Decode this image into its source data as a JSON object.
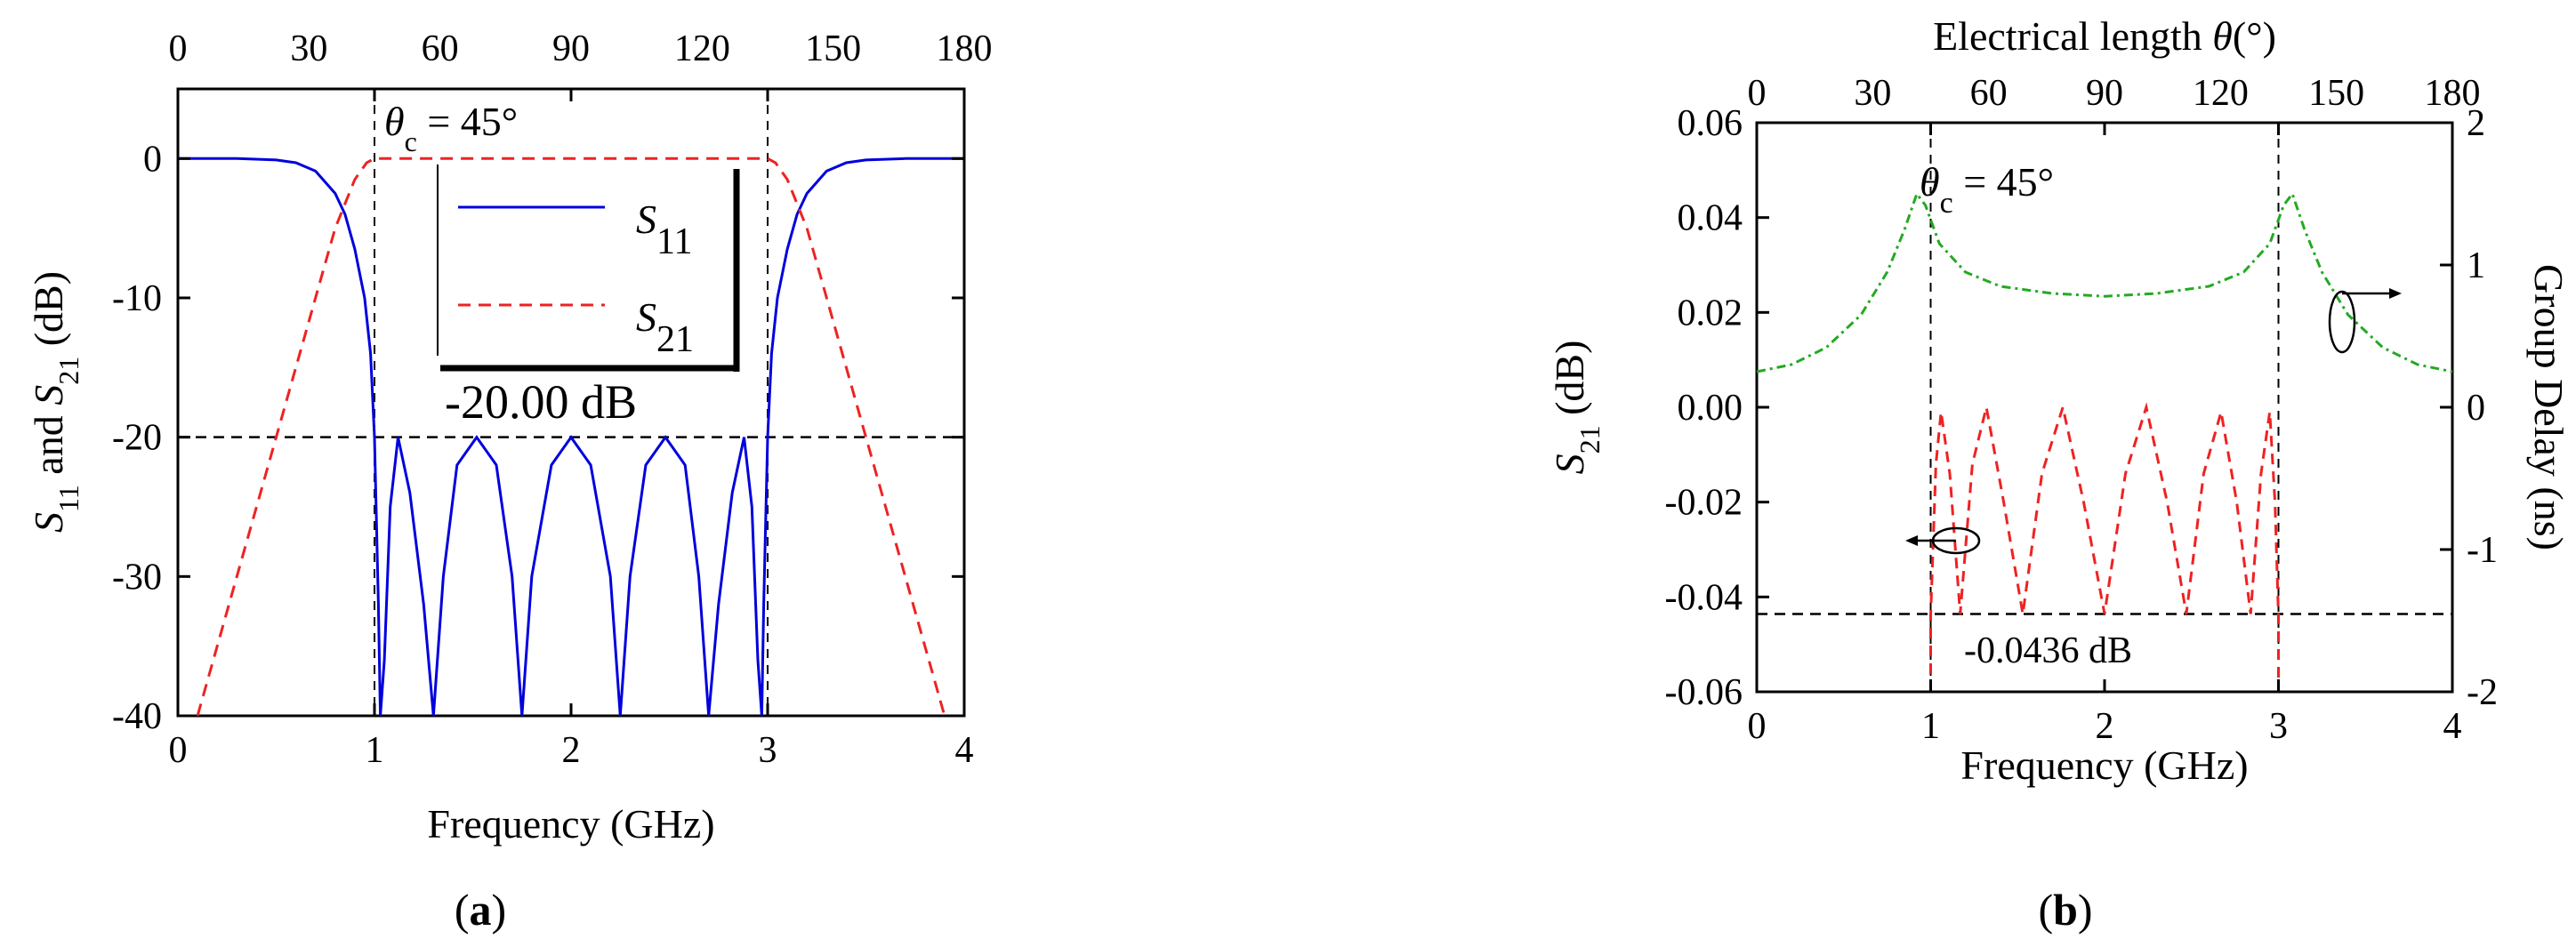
{
  "chart_data": [
    {
      "type": "line",
      "panel_label": "(a)",
      "panel_label_parts": [
        "(",
        "a",
        ")"
      ],
      "xlabel": "Frequency (GHz)",
      "ylabel_parts": {
        "s": "S",
        "sub1": "11",
        "and": " and ",
        "sub2": "21",
        "unit": " (dB)"
      },
      "xlim": [
        0,
        4
      ],
      "ylim": [
        -40,
        5
      ],
      "xticks": [
        "0",
        "1",
        "2",
        "3",
        "4"
      ],
      "yticks": [
        "0",
        "-10",
        "-20",
        "-30",
        "-40"
      ],
      "top_axis": {
        "ticks": [
          "0",
          "30",
          "60",
          "90",
          "120",
          "150",
          "180"
        ],
        "label": ""
      },
      "annotation_theta": {
        "theta": "θ",
        "sub": "c",
        "text": " = 45°"
      },
      "legend": {
        "entries": [
          {
            "sym": "S",
            "sub": "11",
            "color": "#0000dd",
            "dash": "solid"
          },
          {
            "sym": "S",
            "sub": "21",
            "color": "#ee2222",
            "dash": "dashed"
          }
        ],
        "note": "-20.00 dB"
      },
      "reference_lines": {
        "horizontal_db": -20,
        "vertical_ghz": [
          1,
          3
        ]
      },
      "series": [
        {
          "name": "S11",
          "color": "#0000dd",
          "points": [
            [
              0,
              0
            ],
            [
              0.3,
              0
            ],
            [
              0.5,
              -0.1
            ],
            [
              0.6,
              -0.3
            ],
            [
              0.7,
              -0.9
            ],
            [
              0.8,
              -2.5
            ],
            [
              0.85,
              -4
            ],
            [
              0.9,
              -6.5
            ],
            [
              0.95,
              -10
            ],
            [
              0.98,
              -14
            ],
            [
              1.0,
              -20
            ],
            [
              1.02,
              -32
            ],
            [
              1.03,
              -40
            ],
            [
              1.05,
              -36
            ],
            [
              1.08,
              -25
            ],
            [
              1.12,
              -20
            ],
            [
              1.18,
              -24
            ],
            [
              1.25,
              -32
            ],
            [
              1.3,
              -40
            ],
            [
              1.35,
              -30
            ],
            [
              1.42,
              -22
            ],
            [
              1.52,
              -20
            ],
            [
              1.62,
              -22
            ],
            [
              1.7,
              -30
            ],
            [
              1.75,
              -40
            ],
            [
              1.8,
              -30
            ],
            [
              1.9,
              -22
            ],
            [
              2.0,
              -20
            ],
            [
              2.1,
              -22
            ],
            [
              2.2,
              -30
            ],
            [
              2.25,
              -40
            ],
            [
              2.3,
              -30
            ],
            [
              2.38,
              -22
            ],
            [
              2.48,
              -20
            ],
            [
              2.58,
              -22
            ],
            [
              2.65,
              -30
            ],
            [
              2.7,
              -40
            ],
            [
              2.75,
              -32
            ],
            [
              2.82,
              -24
            ],
            [
              2.88,
              -20
            ],
            [
              2.92,
              -25
            ],
            [
              2.95,
              -36
            ],
            [
              2.97,
              -40
            ],
            [
              2.98,
              -32
            ],
            [
              3.0,
              -20
            ],
            [
              3.02,
              -14
            ],
            [
              3.05,
              -10
            ],
            [
              3.1,
              -6.5
            ],
            [
              3.15,
              -4
            ],
            [
              3.2,
              -2.5
            ],
            [
              3.3,
              -0.9
            ],
            [
              3.4,
              -0.3
            ],
            [
              3.5,
              -0.1
            ],
            [
              3.7,
              0
            ],
            [
              4,
              0
            ]
          ]
        },
        {
          "name": "S21",
          "color": "#ee2222",
          "points": [
            [
              0.1,
              -40
            ],
            [
              0.3,
              -30
            ],
            [
              0.5,
              -20
            ],
            [
              0.7,
              -10
            ],
            [
              0.8,
              -5
            ],
            [
              0.9,
              -1.5
            ],
            [
              0.96,
              -0.3
            ],
            [
              1.0,
              0
            ],
            [
              3.0,
              0
            ],
            [
              3.04,
              -0.3
            ],
            [
              3.1,
              -1.5
            ],
            [
              3.2,
              -5
            ],
            [
              3.3,
              -10
            ],
            [
              3.5,
              -20
            ],
            [
              3.7,
              -30
            ],
            [
              3.9,
              -40
            ]
          ]
        }
      ]
    },
    {
      "type": "line",
      "panel_label": "(b)",
      "panel_label_parts": [
        "(",
        "b",
        ")"
      ],
      "xlabel": "Frequency (GHz)",
      "ylabel_left_parts": {
        "s": "S",
        "sub": "21",
        "unit": " (dB)"
      },
      "ylabel_right": "Group Delay (ns)",
      "xlim": [
        0,
        4
      ],
      "ylim_left": [
        -0.06,
        0.06
      ],
      "ylim_right": [
        -2,
        2
      ],
      "xticks": [
        "0",
        "1",
        "2",
        "3",
        "4"
      ],
      "yticks_left": [
        "0.06",
        "0.04",
        "0.02",
        "0.00",
        "-0.02",
        "-0.04",
        "-0.06"
      ],
      "yticks_right": [
        "2",
        "1",
        "0",
        "-1",
        "-2"
      ],
      "top_axis": {
        "ticks": [
          "0",
          "30",
          "60",
          "90",
          "120",
          "150",
          "180"
        ],
        "label_parts": {
          "pre": "Electrical length ",
          "theta": "θ",
          "post": "(°)"
        }
      },
      "annotation_theta": {
        "theta": "θ",
        "sub": "c",
        "text": " = 45°"
      },
      "annotation_ripple": "-0.0436 dB",
      "reference_lines": {
        "horizontal_db": -0.0436,
        "vertical_ghz": [
          1,
          3
        ]
      },
      "series": [
        {
          "name": "S21",
          "axis": "left",
          "color": "#ee2222",
          "points": [
            [
              1.0,
              -0.06
            ],
            [
              1.0,
              -0.044
            ],
            [
              1.03,
              -0.012
            ],
            [
              1.06,
              -0.001
            ],
            [
              1.11,
              -0.014
            ],
            [
              1.17,
              -0.0436
            ],
            [
              1.24,
              -0.012
            ],
            [
              1.32,
              0.0
            ],
            [
              1.42,
              -0.02
            ],
            [
              1.53,
              -0.0436
            ],
            [
              1.64,
              -0.014
            ],
            [
              1.76,
              0.0
            ],
            [
              1.88,
              -0.02
            ],
            [
              2.0,
              -0.0436
            ],
            [
              2.12,
              -0.014
            ],
            [
              2.24,
              0.0
            ],
            [
              2.36,
              -0.02
            ],
            [
              2.47,
              -0.0436
            ],
            [
              2.57,
              -0.014
            ],
            [
              2.67,
              -0.001
            ],
            [
              2.76,
              -0.02
            ],
            [
              2.84,
              -0.0436
            ],
            [
              2.9,
              -0.014
            ],
            [
              2.95,
              -0.001
            ],
            [
              2.98,
              -0.02
            ],
            [
              3.0,
              -0.044
            ],
            [
              3.0,
              -0.06
            ]
          ]
        },
        {
          "name": "Group Delay",
          "axis": "right",
          "color": "#22aa22",
          "points": [
            [
              0,
              0.25
            ],
            [
              0.2,
              0.3
            ],
            [
              0.4,
              0.42
            ],
            [
              0.6,
              0.65
            ],
            [
              0.75,
              0.95
            ],
            [
              0.85,
              1.25
            ],
            [
              0.92,
              1.5
            ],
            [
              0.97,
              1.42
            ],
            [
              1.05,
              1.15
            ],
            [
              1.2,
              0.95
            ],
            [
              1.4,
              0.85
            ],
            [
              1.7,
              0.8
            ],
            [
              2.0,
              0.78
            ],
            [
              2.3,
              0.8
            ],
            [
              2.6,
              0.85
            ],
            [
              2.8,
              0.95
            ],
            [
              2.95,
              1.15
            ],
            [
              3.03,
              1.42
            ],
            [
              3.08,
              1.5
            ],
            [
              3.15,
              1.25
            ],
            [
              3.25,
              0.95
            ],
            [
              3.4,
              0.65
            ],
            [
              3.6,
              0.42
            ],
            [
              3.8,
              0.3
            ],
            [
              4,
              0.25
            ]
          ]
        }
      ]
    }
  ]
}
